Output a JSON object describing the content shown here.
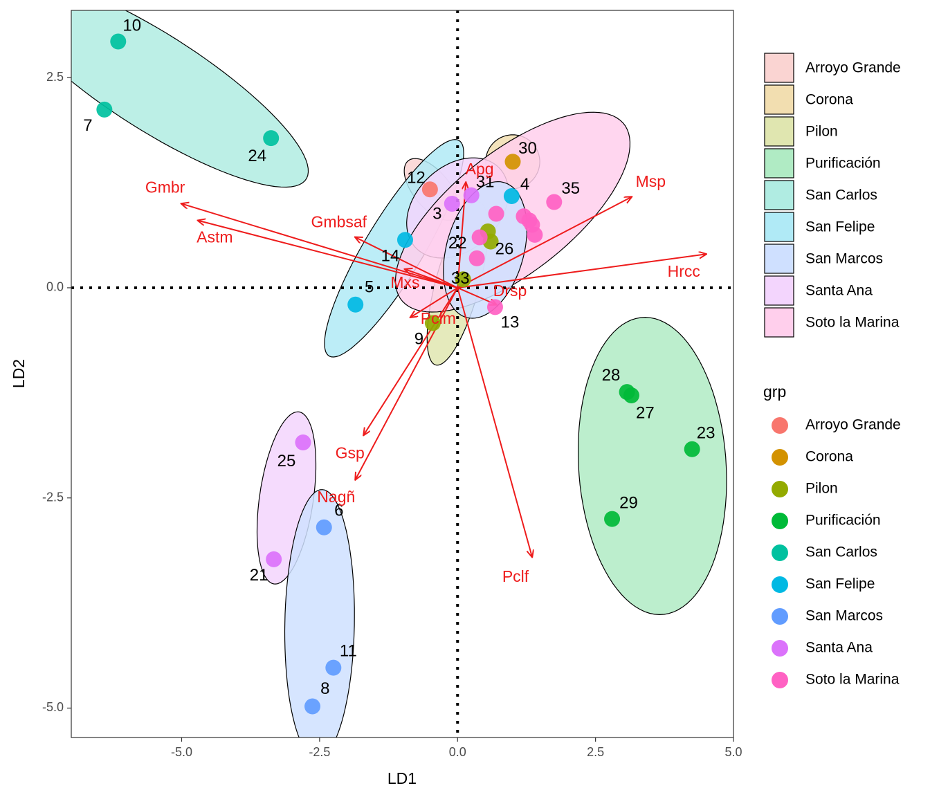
{
  "chart_data": {
    "type": "scatter",
    "xlabel": "LD1",
    "ylabel": "LD2",
    "xlim": [
      -7.0,
      5.0
    ],
    "ylim": [
      -5.35,
      3.3
    ],
    "x_ticks": [
      -5.0,
      -2.5,
      0.0,
      2.5,
      5.0
    ],
    "x_tick_labels": [
      "-5.0",
      "-2.5",
      "0.0",
      "2.5",
      "5.0"
    ],
    "y_ticks": [
      -5.0,
      -2.5,
      0.0,
      2.5
    ],
    "y_tick_labels": [
      "-5.0",
      "-2.5",
      "0.0",
      "2.5"
    ],
    "grid": false,
    "legend_position": "right",
    "groups": [
      {
        "name": "Arroyo Grande",
        "color": "#F8766D",
        "fill": "#FAD4D2"
      },
      {
        "name": "Corona",
        "color": "#D39200",
        "fill": "#F2DEB0"
      },
      {
        "name": "Pilon",
        "color": "#93AA00",
        "fill": "#E0E6B0"
      },
      {
        "name": "Purificación",
        "color": "#00BA38",
        "fill": "#B0EBC4"
      },
      {
        "name": "San Carlos",
        "color": "#00C19F",
        "fill": "#B0ECE2"
      },
      {
        "name": "San Felipe",
        "color": "#00B9E3",
        "fill": "#B0EAF6"
      },
      {
        "name": "San Marcos",
        "color": "#619CFF",
        "fill": "#CFE0FF"
      },
      {
        "name": "Santa Ana",
        "color": "#DB72FB",
        "fill": "#F3D5FD"
      },
      {
        "name": "Soto la Marina",
        "color": "#FF61C3",
        "fill": "#FFCFEC"
      }
    ],
    "ellipses": [
      {
        "group": "San Carlos",
        "cx": -5.5,
        "cy": 2.45,
        "rx": 3.0,
        "ry": 0.62,
        "angle": -0.38
      },
      {
        "group": "Arroyo Grande",
        "cx": -0.47,
        "cy": 1.17,
        "rx": 0.56,
        "ry": 0.26,
        "angle": -0.55
      },
      {
        "group": "Corona",
        "cx": 1.0,
        "cy": 1.5,
        "rx": 0.49,
        "ry": 0.32,
        "angle": 0.0
      },
      {
        "group": "San Felipe",
        "cx": -1.15,
        "cy": 0.47,
        "rx": 1.75,
        "ry": 0.45,
        "angle": 0.8
      },
      {
        "group": "Pilon",
        "cx": 0.0,
        "cy": 0.05,
        "rx": 1.05,
        "ry": 0.38,
        "angle": 1.15
      },
      {
        "group": "Santa Ana",
        "cx": -3.1,
        "cy": -2.5,
        "rx": 1.05,
        "ry": 0.48,
        "angle": 1.32
      },
      {
        "group": "San Marcos",
        "cx": -2.5,
        "cy": -4.0,
        "rx": 1.6,
        "ry": 0.63,
        "angle": 1.54
      },
      {
        "group": "Purificación",
        "cx": 3.53,
        "cy": -2.12,
        "rx": 1.33,
        "ry": 1.78,
        "angle": 0.17
      },
      {
        "group": "Santa Ana",
        "cx": 0.0,
        "cy": 0.95,
        "rx": 0.95,
        "ry": 0.55,
        "angle": 0.3
      },
      {
        "group": "Soto la Marina",
        "cx": 1.0,
        "cy": 0.9,
        "rx": 2.3,
        "ry": 0.8,
        "angle": 0.42
      },
      {
        "group": "San Marcos",
        "cx": 0.5,
        "cy": 0.45,
        "rx": 0.9,
        "ry": 0.65,
        "angle": 0.9
      }
    ],
    "points": [
      {
        "id": "10",
        "group": "San Carlos",
        "x": -6.15,
        "y": 2.93,
        "lx": -5.9,
        "ly": 3.11
      },
      {
        "id": "7",
        "group": "San Carlos",
        "x": -6.4,
        "y": 2.12,
        "lx": -6.7,
        "ly": 1.92
      },
      {
        "id": "24",
        "group": "San Carlos",
        "x": -3.38,
        "y": 1.78,
        "lx": -3.63,
        "ly": 1.56
      },
      {
        "id": "12",
        "group": "Arroyo Grande",
        "x": -0.5,
        "y": 1.17,
        "lx": -0.75,
        "ly": 1.3
      },
      {
        "id": "30",
        "group": "Corona",
        "x": 1.0,
        "y": 1.5,
        "lx": 1.27,
        "ly": 1.65
      },
      {
        "id": "4",
        "group": "San Felipe",
        "x": 0.98,
        "y": 1.09,
        "lx": 1.22,
        "ly": 1.22
      },
      {
        "id": "31",
        "group": "Santa Ana",
        "x": 0.25,
        "y": 1.1,
        "lx": 0.5,
        "ly": 1.25
      },
      {
        "id": "3",
        "group": "Santa Ana",
        "x": -0.1,
        "y": 1.0,
        "lx": -0.37,
        "ly": 0.87
      },
      {
        "id": "14",
        "group": "San Felipe",
        "x": -0.95,
        "y": 0.57,
        "lx": -1.22,
        "ly": 0.37
      },
      {
        "id": "5",
        "group": "San Felipe",
        "x": -1.85,
        "y": -0.2,
        "lx": -1.6,
        "ly": 0.0
      },
      {
        "id": "22",
        "group": "Pilon",
        "x": 0.55,
        "y": 0.67,
        "lx": 0.0,
        "ly": 0.52
      },
      {
        "id": "26",
        "group": "Pilon",
        "x": 0.6,
        "y": 0.55,
        "lx": 0.85,
        "ly": 0.45
      },
      {
        "id": "33",
        "group": "Pilon",
        "x": 0.1,
        "y": 0.1,
        "lx": 0.05,
        "ly": 0.1
      },
      {
        "id": "9",
        "group": "Pilon",
        "x": -0.45,
        "y": -0.42,
        "lx": -0.7,
        "ly": -0.62
      },
      {
        "id": "35",
        "group": "Soto la Marina",
        "x": 1.75,
        "y": 1.02,
        "lx": 2.05,
        "ly": 1.17
      },
      {
        "id": "13",
        "group": "Soto la Marina",
        "x": 0.68,
        "y": -0.23,
        "lx": 0.95,
        "ly": -0.42
      },
      {
        "id": null,
        "group": "Soto la Marina",
        "x": 1.3,
        "y": 0.8,
        "lx": null,
        "ly": null
      },
      {
        "id": null,
        "group": "Soto la Marina",
        "x": 1.2,
        "y": 0.85,
        "lx": null,
        "ly": null
      },
      {
        "id": null,
        "group": "Soto la Marina",
        "x": 1.4,
        "y": 0.63,
        "lx": null,
        "ly": null
      },
      {
        "id": null,
        "group": "Soto la Marina",
        "x": 1.35,
        "y": 0.75,
        "lx": null,
        "ly": null
      },
      {
        "id": null,
        "group": "Soto la Marina",
        "x": 0.7,
        "y": 0.88,
        "lx": null,
        "ly": null
      },
      {
        "id": null,
        "group": "Soto la Marina",
        "x": 0.35,
        "y": 0.35,
        "lx": null,
        "ly": null
      },
      {
        "id": null,
        "group": "Soto la Marina",
        "x": 0.4,
        "y": 0.6,
        "lx": null,
        "ly": null
      },
      {
        "id": "28",
        "group": "Purificación",
        "x": 3.07,
        "y": -1.24,
        "lx": 2.78,
        "ly": -1.05
      },
      {
        "id": "27",
        "group": "Purificación",
        "x": 3.15,
        "y": -1.28,
        "lx": 3.4,
        "ly": -1.5
      },
      {
        "id": "23",
        "group": "Purificación",
        "x": 4.25,
        "y": -1.92,
        "lx": 4.5,
        "ly": -1.74
      },
      {
        "id": "29",
        "group": "Purificación",
        "x": 2.8,
        "y": -2.75,
        "lx": 3.1,
        "ly": -2.57
      },
      {
        "id": "25",
        "group": "Santa Ana",
        "x": -2.8,
        "y": -1.84,
        "lx": -3.1,
        "ly": -2.07
      },
      {
        "id": "21",
        "group": "Santa Ana",
        "x": -3.33,
        "y": -3.23,
        "lx": -3.6,
        "ly": -3.43
      },
      {
        "id": "6",
        "group": "San Marcos",
        "x": -2.42,
        "y": -2.85,
        "lx": -2.15,
        "ly": -2.66
      },
      {
        "id": "11",
        "group": "San Marcos",
        "x": -2.25,
        "y": -4.52,
        "lx": -1.98,
        "ly": -4.33
      },
      {
        "id": "8",
        "group": "San Marcos",
        "x": -2.63,
        "y": -4.98,
        "lx": -2.4,
        "ly": -4.78
      }
    ],
    "vectors": [
      {
        "name": "Gmbr",
        "x": -5.0,
        "y": 1.0,
        "lx": -5.3,
        "ly": 1.18
      },
      {
        "name": "Astm",
        "x": -4.7,
        "y": 0.8,
        "lx": -4.4,
        "ly": 0.59
      },
      {
        "name": "Gmbsaf",
        "x": -1.85,
        "y": 0.6,
        "lx": -2.15,
        "ly": 0.77
      },
      {
        "name": "Mxs",
        "x": -0.95,
        "y": 0.22,
        "lx": -0.95,
        "ly": 0.05
      },
      {
        "name": "Apg",
        "x": 0.15,
        "y": 1.25,
        "lx": 0.4,
        "ly": 1.4
      },
      {
        "name": "Msp",
        "x": 3.15,
        "y": 1.08,
        "lx": 3.5,
        "ly": 1.25
      },
      {
        "name": "Hrcc",
        "x": 4.5,
        "y": 0.4,
        "lx": 4.1,
        "ly": 0.18
      },
      {
        "name": "Drsp",
        "x": 0.7,
        "y": -0.2,
        "lx": 0.95,
        "ly": -0.05
      },
      {
        "name": "Pclm",
        "x": -0.85,
        "y": -0.35,
        "lx": -0.35,
        "ly": -0.38
      },
      {
        "name": "Gsp",
        "x": -1.7,
        "y": -1.75,
        "lx": -1.95,
        "ly": -1.98
      },
      {
        "name": "Nagñ",
        "x": -1.85,
        "y": -2.28,
        "lx": -2.2,
        "ly": -2.5
      },
      {
        "name": "Pclf",
        "x": 1.35,
        "y": -3.2,
        "lx": 1.05,
        "ly": -3.45
      }
    ],
    "fill_legend": {
      "title": "",
      "entries": [
        "Arroyo Grande",
        "Corona",
        "Pilon",
        "Purificación",
        "San Carlos",
        "San Felipe",
        "San Marcos",
        "Santa Ana",
        "Soto la Marina"
      ]
    },
    "color_legend": {
      "title": "grp",
      "entries": [
        "Arroyo Grande",
        "Corona",
        "Pilon",
        "Purificación",
        "San Carlos",
        "San Felipe",
        "San Marcos",
        "Santa Ana",
        "Soto la Marina"
      ]
    }
  }
}
